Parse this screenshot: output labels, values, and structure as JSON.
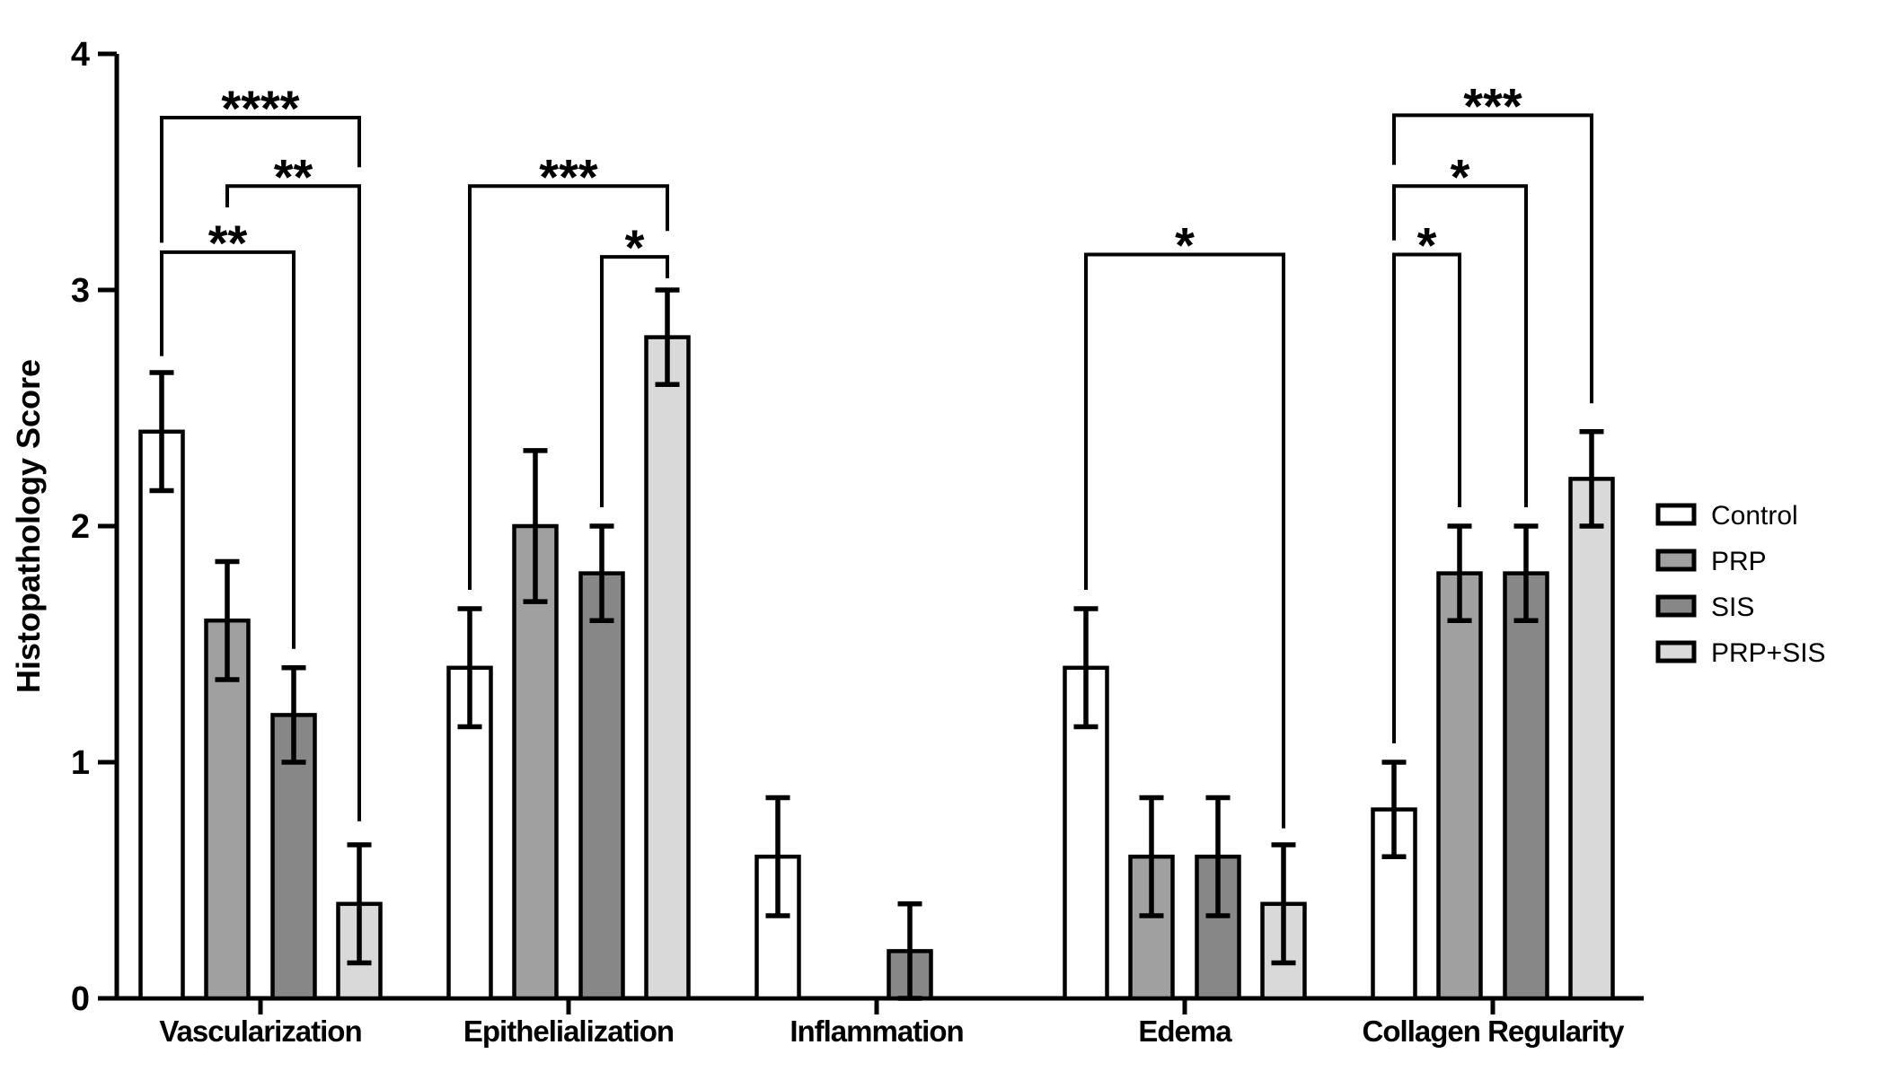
{
  "chart_data": {
    "type": "bar",
    "title": "",
    "xlabel": "",
    "ylabel": "Histopathology Score",
    "ylim": [
      0,
      4
    ],
    "yticks": [
      0,
      1,
      2,
      3,
      4
    ],
    "grid": false,
    "legend_position": "right",
    "background_color": "#ffffff",
    "axis_color": "#000000",
    "bar_outline_color": "#000000",
    "error_bar_color": "#000000",
    "categories": [
      "Vascularization",
      "Epithelialization",
      "Inflammation",
      "Edema",
      "Collagen Regularity"
    ],
    "series": [
      {
        "name": "Control",
        "color": "#ffffff",
        "values": [
          2.4,
          1.4,
          0.6,
          1.4,
          0.8
        ],
        "errors": [
          0.25,
          0.25,
          0.25,
          0.25,
          0.2
        ]
      },
      {
        "name": "PRP",
        "color": "#a0a0a0",
        "values": [
          1.6,
          2.0,
          0.0,
          0.6,
          1.8
        ],
        "errors": [
          0.25,
          0.32,
          0.0,
          0.25,
          0.2
        ]
      },
      {
        "name": "SIS",
        "color": "#878787",
        "values": [
          1.2,
          1.8,
          0.2,
          0.6,
          1.8
        ],
        "errors": [
          0.2,
          0.2,
          0.2,
          0.25,
          0.2
        ]
      },
      {
        "name": "PRP+SIS",
        "color": "#d9d9d9",
        "values": [
          0.4,
          2.8,
          0.0,
          0.4,
          2.2
        ],
        "errors": [
          0.25,
          0.2,
          0.0,
          0.25,
          0.2
        ]
      }
    ],
    "significance_brackets": [
      {
        "category": 0,
        "from_series": 0,
        "to_series": 3,
        "label": "****",
        "height": 3.73,
        "left_drop_to": 3.2,
        "right_drop_to": 3.52
      },
      {
        "category": 0,
        "from_series": 1,
        "to_series": 3,
        "label": "**",
        "height": 3.44,
        "left_drop_to": 3.35,
        "right_drop_to": 0.75
      },
      {
        "category": 0,
        "from_series": 0,
        "to_series": 2,
        "label": "**",
        "height": 3.16,
        "left_drop_to": 2.72,
        "right_drop_to": 1.48
      },
      {
        "category": 1,
        "from_series": 0,
        "to_series": 3,
        "label": "***",
        "height": 3.44,
        "left_drop_to": 1.73,
        "right_drop_to": 3.25
      },
      {
        "category": 1,
        "from_series": 2,
        "to_series": 3,
        "label": "*",
        "height": 3.14,
        "left_drop_to": 2.08,
        "right_drop_to": 3.05
      },
      {
        "category": 3,
        "from_series": 0,
        "to_series": 3,
        "label": "*",
        "height": 3.15,
        "left_drop_to": 1.73,
        "right_drop_to": 0.72
      },
      {
        "category": 4,
        "from_series": 0,
        "to_series": 3,
        "label": "***",
        "height": 3.74,
        "left_drop_to": 3.53,
        "right_drop_to": 2.52
      },
      {
        "category": 4,
        "from_series": 0,
        "to_series": 2,
        "label": "*",
        "height": 3.44,
        "left_drop_to": 3.21,
        "right_drop_to": 2.08
      },
      {
        "category": 4,
        "from_series": 0,
        "to_series": 1,
        "label": "*",
        "height": 3.15,
        "left_drop_to": 1.08,
        "right_drop_to": 2.08
      }
    ]
  },
  "legend": {
    "items": [
      {
        "label": "Control",
        "color": "#ffffff"
      },
      {
        "label": "PRP",
        "color": "#a0a0a0"
      },
      {
        "label": "SIS",
        "color": "#878787"
      },
      {
        "label": "PRP+SIS",
        "color": "#d9d9d9"
      }
    ]
  }
}
